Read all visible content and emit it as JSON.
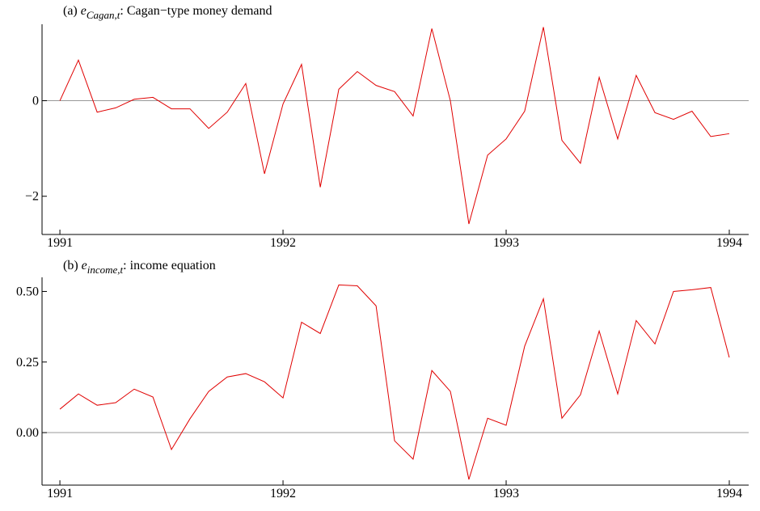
{
  "chart_data": [
    {
      "type": "line",
      "title_prefix": "(a)",
      "title_symbol": "e",
      "title_subscript": "Cagan,t",
      "title_rest": ": Cagan−type money demand",
      "x": [
        1991,
        1991.083,
        1991.167,
        1991.25,
        1991.333,
        1991.417,
        1991.5,
        1991.583,
        1991.667,
        1991.75,
        1991.833,
        1991.917,
        1992,
        1992.083,
        1992.167,
        1992.25,
        1992.333,
        1992.417,
        1992.5,
        1992.583,
        1992.667,
        1992.75,
        1992.833,
        1992.917,
        1993,
        1993.083,
        1993.167,
        1993.25,
        1993.333,
        1993.417,
        1993.5,
        1993.583,
        1993.667,
        1993.75,
        1993.833,
        1993.917,
        1994
      ],
      "series": [
        {
          "color": "#e00000",
          "values": [
            0,
            0.85,
            -0.24,
            -0.15,
            0.03,
            0.07,
            -0.17,
            -0.17,
            -0.58,
            -0.24,
            0.36,
            -1.53,
            -0.07,
            0.76,
            -1.81,
            0.24,
            0.61,
            0.32,
            0.19,
            -0.32,
            1.51,
            0,
            -2.58,
            -1.14,
            -0.8,
            -0.22,
            1.54,
            -0.83,
            -1.31,
            0.49,
            -0.8,
            0.53,
            -0.25,
            -0.39,
            -0.22,
            -0.75,
            -0.69
          ]
        }
      ],
      "xlim": [
        1990.92,
        1994.087
      ],
      "xticks": [
        1991,
        1992,
        1993,
        1994
      ],
      "ylim": [
        -2.8,
        1.6
      ],
      "yticks": [
        {
          "value": -2,
          "label": "−2"
        },
        0
      ],
      "zero_line": true
    },
    {
      "type": "line",
      "title_prefix": "(b)",
      "title_symbol": "e",
      "title_subscript": "income,t",
      "title_rest": ": income equation",
      "x": [
        1991,
        1991.083,
        1991.167,
        1991.25,
        1991.333,
        1991.417,
        1991.5,
        1991.583,
        1991.667,
        1991.75,
        1991.833,
        1991.917,
        1992,
        1992.083,
        1992.167,
        1992.25,
        1992.333,
        1992.417,
        1992.5,
        1992.583,
        1992.667,
        1992.75,
        1992.833,
        1992.917,
        1993,
        1993.083,
        1993.167,
        1993.25,
        1993.333,
        1993.417,
        1993.5,
        1993.583,
        1993.667,
        1993.75,
        1993.833,
        1993.917,
        1994
      ],
      "series": [
        {
          "color": "#e00000",
          "values": [
            0.083,
            0.137,
            0.097,
            0.106,
            0.154,
            0.126,
            -0.06,
            0.049,
            0.146,
            0.197,
            0.209,
            0.18,
            0.123,
            0.391,
            0.351,
            0.523,
            0.52,
            0.449,
            -0.029,
            -0.094,
            0.22,
            0.146,
            -0.166,
            0.051,
            0.026,
            0.306,
            0.474,
            0.051,
            0.134,
            0.36,
            0.137,
            0.397,
            0.314,
            0.5,
            0.506,
            0.514,
            0.266
          ]
        }
      ],
      "xlim": [
        1990.92,
        1994.087
      ],
      "xticks": [
        1991,
        1992,
        1993,
        1994
      ],
      "ylim": [
        -0.186,
        0.55
      ],
      "yticks": [
        {
          "value": 0,
          "label": "0.00"
        },
        {
          "value": 0.25,
          "label": "0.25"
        },
        {
          "value": 0.5,
          "label": "0.50"
        }
      ],
      "zero_line": true
    }
  ]
}
